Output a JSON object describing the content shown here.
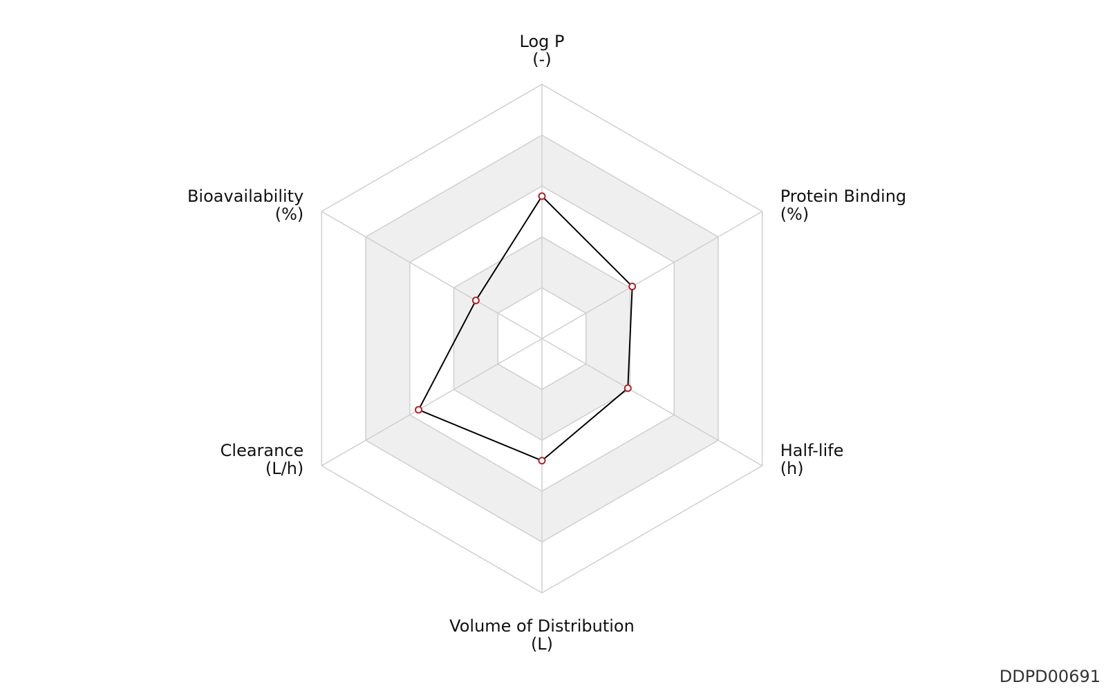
{
  "chart_data": {
    "type": "radar",
    "axes": [
      {
        "name": "Log P",
        "unit": "(-)"
      },
      {
        "name": "Protein Binding",
        "unit": "(%)"
      },
      {
        "name": "Half-life",
        "unit": "(h)"
      },
      {
        "name": "Volume of Distribution",
        "unit": "(L)"
      },
      {
        "name": "Clearance",
        "unit": "(L/h)"
      },
      {
        "name": "Bioavailability",
        "unit": "(%)"
      }
    ],
    "rings": 5,
    "range": [
      0,
      1
    ],
    "values": [
      0.56,
      0.41,
      0.39,
      0.48,
      0.56,
      0.3
    ],
    "identifier": "DDPD00691",
    "colors": {
      "grid": "#cfcfcf",
      "band": "#efefef",
      "line": "#000000",
      "marker_stroke": "#b22222",
      "marker_fill": "#ffffff"
    },
    "legend": "none"
  }
}
